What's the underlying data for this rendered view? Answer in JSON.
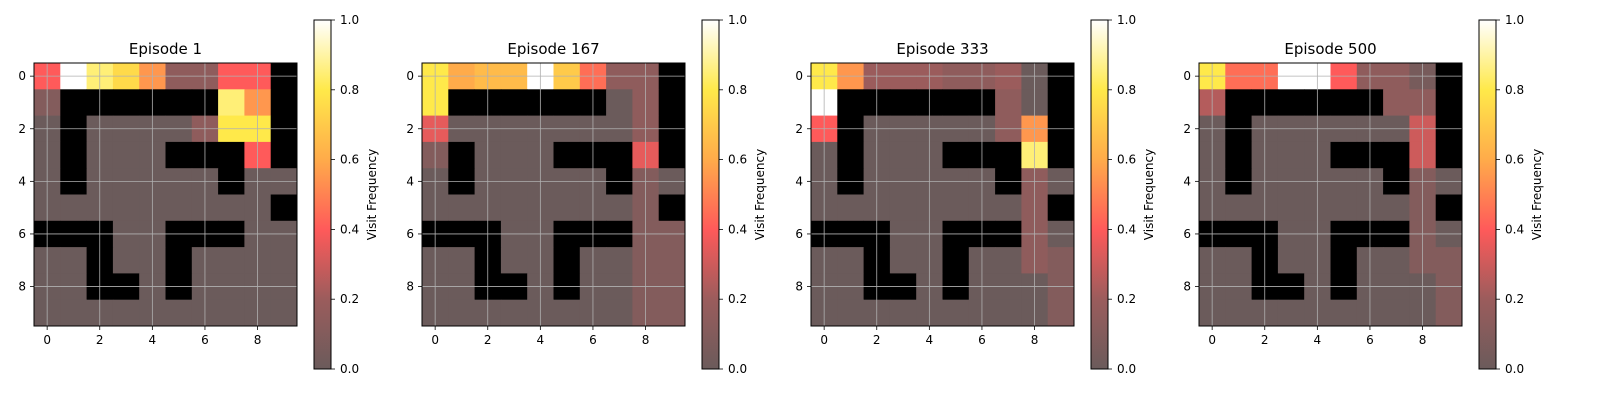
{
  "figure": {
    "colorbar_label": "Visit Frequency"
  },
  "colors": {
    "wall": "#000000",
    "background": "#ffffff",
    "colormap": "hot",
    "colormap_min": "#6b5b5b",
    "colormap_max": "#ffffff"
  },
  "chart_data": [
    {
      "type": "heatmap",
      "title": "Episode 1",
      "x_ticks": [
        0,
        2,
        4,
        6,
        8
      ],
      "y_ticks": [
        0,
        2,
        4,
        6,
        8
      ],
      "grid": true,
      "colorbar": {
        "label": "Visit Frequency",
        "ticks": [
          "0.0",
          "0.2",
          "0.4",
          "0.6",
          "0.8",
          "1.0"
        ],
        "range": [
          0,
          1
        ]
      },
      "wall_value": -1,
      "matrix": [
        [
          0.4,
          1.0,
          0.85,
          0.75,
          0.55,
          0.15,
          0.15,
          0.4,
          0.4,
          -1
        ],
        [
          0.1,
          -1,
          -1,
          -1,
          -1,
          -1,
          -1,
          0.85,
          0.55,
          -1
        ],
        [
          0.0,
          -1,
          0.0,
          0.0,
          0.0,
          0.0,
          0.15,
          0.8,
          0.8,
          -1
        ],
        [
          0.0,
          -1,
          0.0,
          0.0,
          0.0,
          -1,
          -1,
          -1,
          0.4,
          -1
        ],
        [
          0.0,
          -1,
          0.0,
          0.0,
          0.0,
          0.0,
          0.0,
          -1,
          0.0,
          0.0
        ],
        [
          0.0,
          0.0,
          0.0,
          0.0,
          0.0,
          0.0,
          0.0,
          0.0,
          0.0,
          -1
        ],
        [
          -1,
          -1,
          -1,
          0.0,
          0.0,
          -1,
          -1,
          -1,
          0.0,
          0.0
        ],
        [
          0.0,
          0.0,
          -1,
          0.0,
          0.0,
          -1,
          0.0,
          0.0,
          0.0,
          0.0
        ],
        [
          0.0,
          0.0,
          -1,
          -1,
          0.0,
          -1,
          0.0,
          0.0,
          0.0,
          0.0
        ],
        [
          0.0,
          0.0,
          0.0,
          0.0,
          0.0,
          0.0,
          0.0,
          0.0,
          0.0,
          0.0
        ]
      ]
    },
    {
      "type": "heatmap",
      "title": "Episode 167",
      "x_ticks": [
        0,
        2,
        4,
        6,
        8
      ],
      "y_ticks": [
        0,
        2,
        4,
        6,
        8
      ],
      "grid": true,
      "colorbar": {
        "label": "Visit Frequency",
        "ticks": [
          "0.0",
          "0.2",
          "0.4",
          "0.6",
          "0.8",
          "1.0"
        ],
        "range": [
          0,
          1
        ]
      },
      "wall_value": -1,
      "matrix": [
        [
          0.8,
          0.6,
          0.65,
          0.65,
          1.0,
          0.7,
          0.45,
          0.15,
          0.15,
          -1
        ],
        [
          0.8,
          -1,
          -1,
          -1,
          -1,
          -1,
          -1,
          0.0,
          0.15,
          -1
        ],
        [
          0.35,
          0.0,
          0.0,
          0.0,
          0.0,
          0.0,
          0.0,
          0.0,
          0.15,
          -1
        ],
        [
          0.1,
          -1,
          0.0,
          0.0,
          0.0,
          -1,
          -1,
          -1,
          0.35,
          -1
        ],
        [
          0.0,
          -1,
          0.0,
          0.0,
          0.0,
          0.0,
          0.0,
          -1,
          0.1,
          0.0
        ],
        [
          0.0,
          0.0,
          0.0,
          0.0,
          0.0,
          0.0,
          0.0,
          0.0,
          0.1,
          -1
        ],
        [
          -1,
          -1,
          -1,
          0.0,
          0.0,
          -1,
          -1,
          -1,
          0.1,
          0.1
        ],
        [
          0.0,
          0.0,
          -1,
          0.0,
          0.0,
          -1,
          0.0,
          0.0,
          0.1,
          0.1
        ],
        [
          0.0,
          0.0,
          -1,
          -1,
          0.0,
          -1,
          0.0,
          0.0,
          0.1,
          0.1
        ],
        [
          0.0,
          0.0,
          0.0,
          0.0,
          0.0,
          0.0,
          0.0,
          0.0,
          0.1,
          0.1
        ]
      ]
    },
    {
      "type": "heatmap",
      "title": "Episode 333",
      "x_ticks": [
        0,
        2,
        4,
        6,
        8
      ],
      "y_ticks": [
        0,
        2,
        4,
        6,
        8
      ],
      "grid": true,
      "colorbar": {
        "label": "Visit Frequency",
        "ticks": [
          "0.0",
          "0.2",
          "0.4",
          "0.6",
          "0.8",
          "1.0"
        ],
        "range": [
          0,
          1
        ]
      },
      "wall_value": -1,
      "matrix": [
        [
          0.8,
          0.55,
          0.2,
          0.2,
          0.2,
          0.15,
          0.15,
          0.2,
          0.0,
          -1
        ],
        [
          1.0,
          -1,
          -1,
          -1,
          -1,
          -1,
          -1,
          0.15,
          0.0,
          -1
        ],
        [
          0.4,
          -1,
          0.0,
          0.0,
          0.0,
          0.0,
          0.0,
          0.15,
          0.55,
          -1
        ],
        [
          0.0,
          -1,
          0.0,
          0.0,
          0.0,
          -1,
          -1,
          -1,
          0.85,
          -1
        ],
        [
          0.0,
          -1,
          0.0,
          0.0,
          0.0,
          0.0,
          0.0,
          -1,
          0.15,
          0.0
        ],
        [
          0.0,
          0.0,
          0.0,
          0.0,
          0.0,
          0.0,
          0.0,
          0.0,
          0.15,
          -1
        ],
        [
          -1,
          -1,
          -1,
          0.0,
          0.0,
          -1,
          -1,
          -1,
          0.15,
          0.0
        ],
        [
          0.0,
          0.0,
          -1,
          0.0,
          0.0,
          -1,
          0.0,
          0.0,
          0.15,
          0.1
        ],
        [
          0.0,
          0.0,
          -1,
          -1,
          0.0,
          -1,
          0.0,
          0.0,
          0.0,
          0.1
        ],
        [
          0.0,
          0.0,
          0.0,
          0.0,
          0.0,
          0.0,
          0.0,
          0.0,
          0.0,
          0.1
        ]
      ]
    },
    {
      "type": "heatmap",
      "title": "Episode 500",
      "x_ticks": [
        0,
        2,
        4,
        6,
        8
      ],
      "y_ticks": [
        0,
        2,
        4,
        6,
        8
      ],
      "grid": true,
      "colorbar": {
        "label": "Visit Frequency",
        "ticks": [
          "0.0",
          "0.2",
          "0.4",
          "0.6",
          "0.8",
          "1.0"
        ],
        "range": [
          0,
          1
        ]
      },
      "wall_value": -1,
      "matrix": [
        [
          0.8,
          0.45,
          0.45,
          1.0,
          1.0,
          0.4,
          0.15,
          0.15,
          0.05,
          -1
        ],
        [
          0.25,
          -1,
          -1,
          -1,
          -1,
          -1,
          -1,
          0.15,
          0.15,
          -1
        ],
        [
          0.0,
          -1,
          0.0,
          0.0,
          0.0,
          0.0,
          0.0,
          0.0,
          0.3,
          -1
        ],
        [
          0.0,
          -1,
          0.0,
          0.0,
          0.0,
          -1,
          -1,
          -1,
          0.3,
          -1
        ],
        [
          0.0,
          -1,
          0.0,
          0.0,
          0.0,
          0.0,
          0.0,
          -1,
          0.1,
          0.0
        ],
        [
          0.0,
          0.0,
          0.0,
          0.0,
          0.0,
          0.0,
          0.0,
          0.0,
          0.1,
          -1
        ],
        [
          -1,
          -1,
          -1,
          0.0,
          0.0,
          -1,
          -1,
          -1,
          0.1,
          0.0
        ],
        [
          0.0,
          0.0,
          -1,
          0.0,
          0.0,
          -1,
          0.0,
          0.0,
          0.1,
          0.1
        ],
        [
          0.0,
          0.0,
          -1,
          -1,
          0.0,
          -1,
          0.0,
          0.0,
          0.0,
          0.1
        ],
        [
          0.0,
          0.0,
          0.0,
          0.0,
          0.0,
          0.0,
          0.0,
          0.0,
          0.0,
          0.1
        ]
      ]
    }
  ]
}
